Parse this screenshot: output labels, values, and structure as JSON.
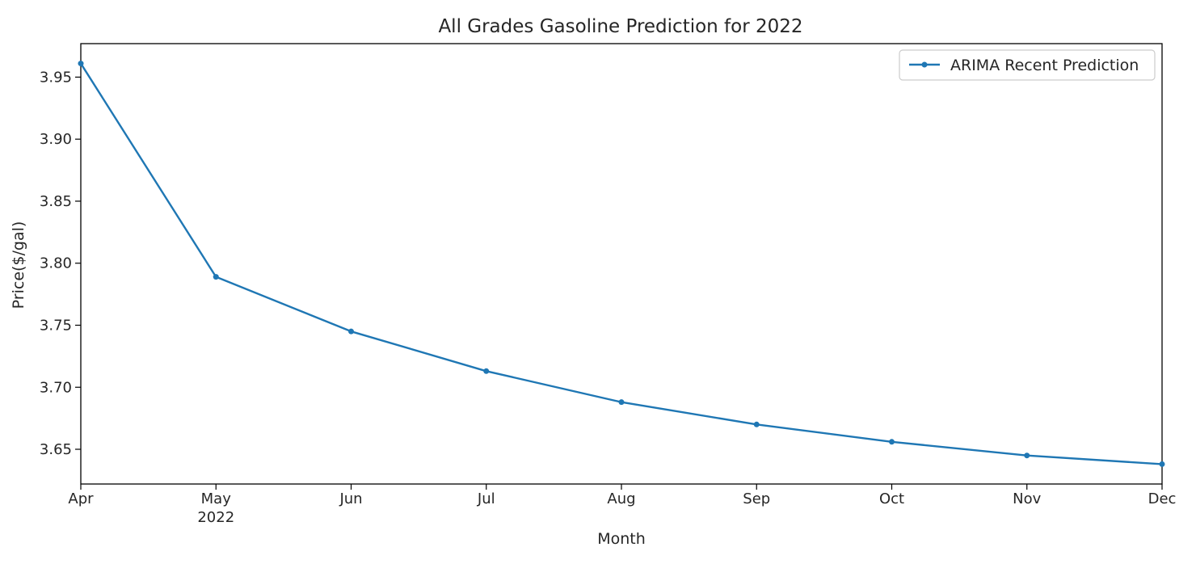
{
  "chart_data": {
    "type": "line",
    "title": "All Grades Gasoline Prediction for 2022",
    "xlabel": "Month",
    "ylabel": "Price($/gal)",
    "x": [
      "2022-04",
      "2022-05",
      "2022-06",
      "2022-07",
      "2022-08",
      "2022-09",
      "2022-10",
      "2022-11",
      "2022-12"
    ],
    "x_tick_labels": [
      "Apr",
      "May",
      "Jun",
      "Jul",
      "Aug",
      "Sep",
      "Oct",
      "Nov",
      "Dec"
    ],
    "x_year_label": "2022",
    "series": [
      {
        "name": "ARIMA Recent Prediction",
        "color": "#1f77b4",
        "marker": "point",
        "values": [
          3.961,
          3.789,
          3.745,
          3.713,
          3.688,
          3.67,
          3.656,
          3.645,
          3.638
        ]
      }
    ],
    "y_ticks": [
      "3.65",
      "3.70",
      "3.75",
      "3.80",
      "3.85",
      "3.90",
      "3.95"
    ],
    "ylim": [
      3.622,
      3.977
    ],
    "grid": false,
    "legend_position": "top-right"
  }
}
